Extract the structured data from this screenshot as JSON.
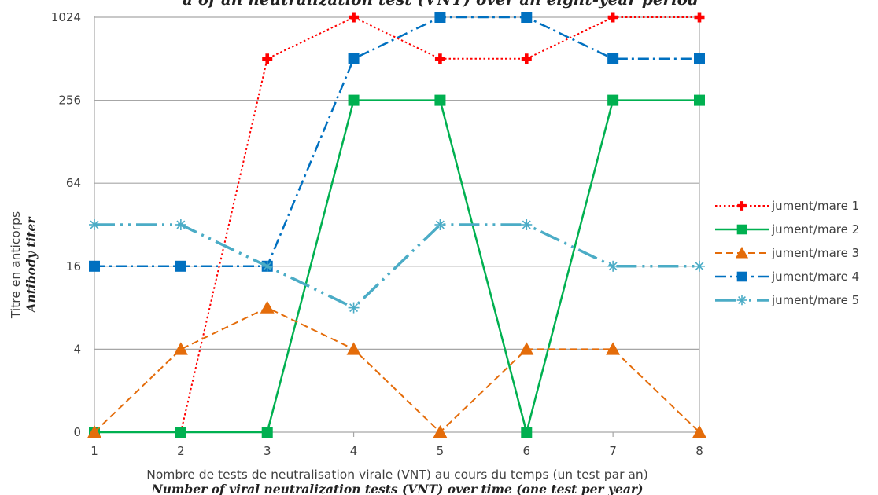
{
  "chart_data": {
    "type": "line",
    "title": "a of an neutralization test (VNT) over an eight-year period",
    "x": [
      1,
      2,
      3,
      4,
      5,
      6,
      7,
      8
    ],
    "y_ticks": [
      "0",
      "4",
      "16",
      "64",
      "256",
      "1024"
    ],
    "xlabel": "Nombre de tests de neutralisation virale (VNT) au cours du temps (un test par an)",
    "xlabel_en": "Number of viral neutralization tests (VNT) over time (one test per year)",
    "ylabel": "Titre en anticorps",
    "ylabel_en": "Antibody titer",
    "y_scale": "log2 (0 shown at bottom)",
    "grid": "horizontal",
    "legend_position": "right",
    "series": [
      {
        "name": "jument/mare 1",
        "color": "#ff0000",
        "marker": "plus-diamond",
        "dash": "dotted",
        "values": [
          0,
          0,
          512,
          1024,
          512,
          512,
          1024,
          1024
        ]
      },
      {
        "name": "jument/mare 2",
        "color": "#00b050",
        "marker": "square",
        "dash": "solid",
        "values": [
          0,
          0,
          0,
          256,
          256,
          0,
          256,
          256
        ]
      },
      {
        "name": "jument/mare 3",
        "color": "#e46c0a",
        "marker": "triangle",
        "dash": "dashed",
        "values": [
          0,
          4,
          8,
          4,
          0,
          4,
          4,
          0
        ]
      },
      {
        "name": "jument/mare 4",
        "color": "#0070c0",
        "marker": "square",
        "dash": "dash-dot",
        "values": [
          16,
          16,
          16,
          512,
          1024,
          1024,
          512,
          512
        ]
      },
      {
        "name": "jument/mare 5",
        "color": "#4bacc6",
        "marker": "star",
        "dash": "long-dash-dot-dot",
        "values": [
          32,
          32,
          16,
          8,
          32,
          32,
          16,
          16
        ]
      }
    ]
  }
}
